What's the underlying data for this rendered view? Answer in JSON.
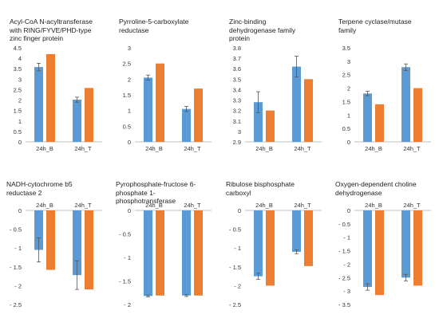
{
  "chart_data": [
    {
      "type": "bar",
      "title_lines": [
        "Acyl-CoA N-acyltransferase",
        "with RING/FYVE/PHD-type",
        "zinc finger protein"
      ],
      "categories": [
        "24h_B",
        "24h_T"
      ],
      "series": [
        {
          "color": "#5b9bd5",
          "values": [
            3.58,
            2.02
          ],
          "error": [
            0.18,
            0.12
          ]
        },
        {
          "color": "#ed7d31",
          "values": [
            4.2,
            2.58
          ],
          "error": [
            0,
            0
          ]
        }
      ],
      "yticks": [
        "0",
        "0.5",
        "1",
        "1.5",
        "2",
        "2.5",
        "3",
        "3.5",
        "4",
        "4.5"
      ],
      "ylim": [
        0,
        4.5
      ],
      "category_axis": "bottom"
    },
    {
      "type": "bar",
      "title_lines": [
        "Pyrroline-5-carboxylate",
        "reductase"
      ],
      "categories": [
        "24h_B",
        "24h_T"
      ],
      "series": [
        {
          "color": "#5b9bd5",
          "values": [
            2.05,
            1.05
          ],
          "error": [
            0.08,
            0.08
          ]
        },
        {
          "color": "#ed7d31",
          "values": [
            2.5,
            1.7
          ],
          "error": [
            0,
            0
          ]
        }
      ],
      "yticks": [
        "0",
        "0.5",
        "1",
        "1.5",
        "2",
        "2.5",
        "3"
      ],
      "ylim": [
        0,
        3
      ],
      "category_axis": "bottom"
    },
    {
      "type": "bar",
      "title_lines": [
        "Zinc-binding",
        "dehydrogenase family",
        "protein"
      ],
      "categories": [
        "24h_B",
        "24h_T"
      ],
      "series": [
        {
          "color": "#5b9bd5",
          "values": [
            3.28,
            3.62
          ],
          "error": [
            0.1,
            0.1
          ]
        },
        {
          "color": "#ed7d31",
          "values": [
            3.2,
            3.5
          ],
          "error": [
            0,
            0
          ]
        }
      ],
      "yticks": [
        "2.9",
        "3",
        "3.1",
        "3.2",
        "3.3",
        "3.4",
        "3.5",
        "3.6",
        "3.7",
        "3.8"
      ],
      "ylim": [
        2.9,
        3.8
      ],
      "category_axis": "bottom"
    },
    {
      "type": "bar",
      "title_lines": [
        "Terpene cyclase/mutase",
        "family"
      ],
      "categories": [
        "24h_B",
        "24h_T"
      ],
      "series": [
        {
          "color": "#5b9bd5",
          "values": [
            1.8,
            2.78
          ],
          "error": [
            0.08,
            0.12
          ]
        },
        {
          "color": "#ed7d31",
          "values": [
            1.4,
            2.0
          ],
          "error": [
            0,
            0
          ]
        }
      ],
      "yticks": [
        "0",
        "0.5",
        "1",
        "1.5",
        "2",
        "2.5",
        "3",
        "3.5"
      ],
      "ylim": [
        0,
        3.5
      ],
      "category_axis": "bottom"
    },
    {
      "type": "bar",
      "title_lines": [
        "NADH-cytochrome  b5",
        "reductase 2"
      ],
      "categories": [
        "24h_B",
        "24h_T"
      ],
      "series": [
        {
          "color": "#5b9bd5",
          "values": [
            -1.05,
            -1.72
          ],
          "error": [
            0.32,
            0.38
          ]
        },
        {
          "color": "#ed7d31",
          "values": [
            -1.58,
            -2.1
          ],
          "error": [
            0,
            0
          ]
        }
      ],
      "yticks": [
        "0",
        "- 0.5",
        "- 1",
        "- 1.5",
        "- 2",
        "- 2.5"
      ],
      "ylim": [
        -2.5,
        0
      ],
      "category_axis": "top"
    },
    {
      "type": "bar",
      "title_lines": [
        "Pyrophosphate-fructose 6-",
        "phosphate 1-",
        "phosphotransferase"
      ],
      "categories": [
        "24h_B",
        "24h_T"
      ],
      "series": [
        {
          "color": "#5b9bd5",
          "values": [
            -1.82,
            -1.81
          ],
          "error": [
            0.02,
            0.02
          ]
        },
        {
          "color": "#ed7d31",
          "values": [
            -1.81,
            -1.81
          ],
          "error": [
            0,
            0
          ]
        }
      ],
      "yticks": [
        "0",
        "- 0.5",
        "- 1",
        "- 1.5",
        "- 2"
      ],
      "ylim": [
        -2,
        0
      ],
      "category_axis": "top"
    },
    {
      "type": "bar",
      "title_lines": [
        "Ribulose bisphosphate",
        "carboxyl"
      ],
      "categories": [
        "24h_B",
        "24h_T"
      ],
      "series": [
        {
          "color": "#5b9bd5",
          "values": [
            -1.75,
            -1.1
          ],
          "error": [
            0.08,
            0.05
          ]
        },
        {
          "color": "#ed7d31",
          "values": [
            -2.0,
            -1.48
          ],
          "error": [
            0,
            0
          ]
        }
      ],
      "yticks": [
        "0",
        "- 0.5",
        "- 1",
        "- 1.5",
        "- 2",
        "- 2.5"
      ],
      "ylim": [
        -2.5,
        0
      ],
      "category_axis": "top"
    },
    {
      "type": "bar",
      "title_lines": [
        "Oxygen-dependent  choline",
        "dehydrogenase"
      ],
      "categories": [
        "24h_B",
        "24h_T"
      ],
      "series": [
        {
          "color": "#5b9bd5",
          "values": [
            -2.85,
            -2.5
          ],
          "error": [
            0.12,
            0.12
          ]
        },
        {
          "color": "#ed7d31",
          "values": [
            -3.15,
            -2.8
          ],
          "error": [
            0,
            0
          ]
        }
      ],
      "yticks": [
        "0",
        "- 0.5",
        "- 1",
        "- 1.5",
        "- 2",
        "- 2.5",
        "- 3",
        "- 3.5"
      ],
      "ylim": [
        -3.5,
        0
      ],
      "category_axis": "top"
    }
  ]
}
